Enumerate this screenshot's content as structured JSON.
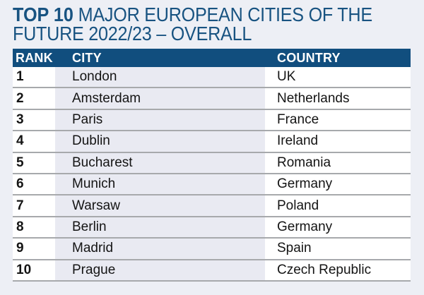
{
  "colors": {
    "page_background": "#edeff5",
    "title_text": "#185381",
    "header_bar_background": "#114e7e",
    "header_text": "#ffffff",
    "city_column_tint": "#e9eaf2",
    "cell_background_white": "#ffffff",
    "row_divider": "#a7a9ac",
    "body_text": "#141414"
  },
  "title": {
    "prefix": "TOP 10",
    "line1": " MAJOR EUROPEAN CITIES OF THE",
    "line2": "FUTURE 2022/23 – OVERALL"
  },
  "chart_data": {
    "type": "table",
    "title": "TOP 10 MAJOR EUROPEAN CITIES OF THE FUTURE 2022/23 – OVERALL",
    "columns": [
      "RANK",
      "CITY",
      "COUNTRY"
    ],
    "rows": [
      [
        "1",
        "London",
        "UK"
      ],
      [
        "2",
        "Amsterdam",
        "Netherlands"
      ],
      [
        "3",
        "Paris",
        "France"
      ],
      [
        "4",
        "Dublin",
        "Ireland"
      ],
      [
        "5",
        "Bucharest",
        "Romania"
      ],
      [
        "6",
        "Munich",
        "Germany"
      ],
      [
        "7",
        "Warsaw",
        "Poland"
      ],
      [
        "8",
        "Berlin",
        "Germany"
      ],
      [
        "9",
        "Madrid",
        "Spain"
      ],
      [
        "10",
        "Prague",
        "Czech Republic"
      ]
    ]
  }
}
